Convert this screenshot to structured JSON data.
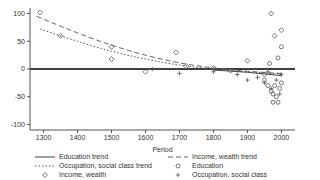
{
  "chart_data": {
    "type": "scatter",
    "x_label": "Period",
    "xlim": [
      1260,
      2040
    ],
    "xticks": [
      1300,
      1400,
      1500,
      1600,
      1700,
      1800,
      1900,
      2000
    ],
    "ylim": [
      -110,
      110
    ],
    "yticks": [
      -100,
      -50,
      0,
      50,
      100
    ],
    "reference_y": 0,
    "series": [
      {
        "name": "Education trend",
        "type": "line",
        "line_style": "solid",
        "color": "#444444",
        "x": [
          1800,
          1900,
          2000
        ],
        "values": [
          -2,
          -6,
          -12
        ]
      },
      {
        "name": "Income, wealth trend",
        "type": "line",
        "line_style": "dashed",
        "color": "#666666",
        "x": [
          1280,
          1400,
          1500,
          1600,
          1700,
          1800,
          1900,
          2000
        ],
        "values": [
          95,
          65,
          43,
          25,
          11,
          2,
          -4,
          -8
        ]
      },
      {
        "name": "Occupation, social class trend",
        "type": "line",
        "line_style": "dotted",
        "color": "#555555",
        "x": [
          1290,
          1400,
          1500,
          1600,
          1700,
          1800,
          1900,
          2000
        ],
        "values": [
          72,
          50,
          32,
          18,
          7,
          0,
          -5,
          -9
        ]
      },
      {
        "name": "Education",
        "type": "scatter",
        "marker": "circle",
        "color": "#555555",
        "x": [
          1950,
          1960,
          1965,
          1970,
          1975,
          1975,
          1980,
          1985,
          1990,
          1990,
          1995,
          2000,
          2000
        ],
        "values": [
          -20,
          -30,
          10,
          -40,
          -45,
          -60,
          -30,
          -50,
          -60,
          20,
          -35,
          -25,
          40
        ]
      },
      {
        "name": "Income, wealth",
        "type": "scatter",
        "marker": "diamond",
        "color": "#555555",
        "x": [
          1290,
          1350,
          1500,
          1500,
          1600,
          1690,
          1720,
          1800,
          1850,
          1900,
          1950,
          1970,
          1980,
          2000
        ],
        "values": [
          102,
          60,
          40,
          18,
          -5,
          30,
          5,
          2,
          -3,
          15,
          -10,
          100,
          60,
          70
        ]
      },
      {
        "name": "Occupation, social class",
        "type": "scatter",
        "marker": "plus",
        "color": "#555555",
        "x": [
          1620,
          1700,
          1800,
          1870,
          1900,
          1930,
          1950,
          1960,
          1970,
          1985,
          1995,
          2000
        ],
        "values": [
          0,
          -8,
          -5,
          -10,
          -20,
          -15,
          -25,
          -5,
          -35,
          -20,
          -45,
          -10
        ]
      }
    ]
  }
}
